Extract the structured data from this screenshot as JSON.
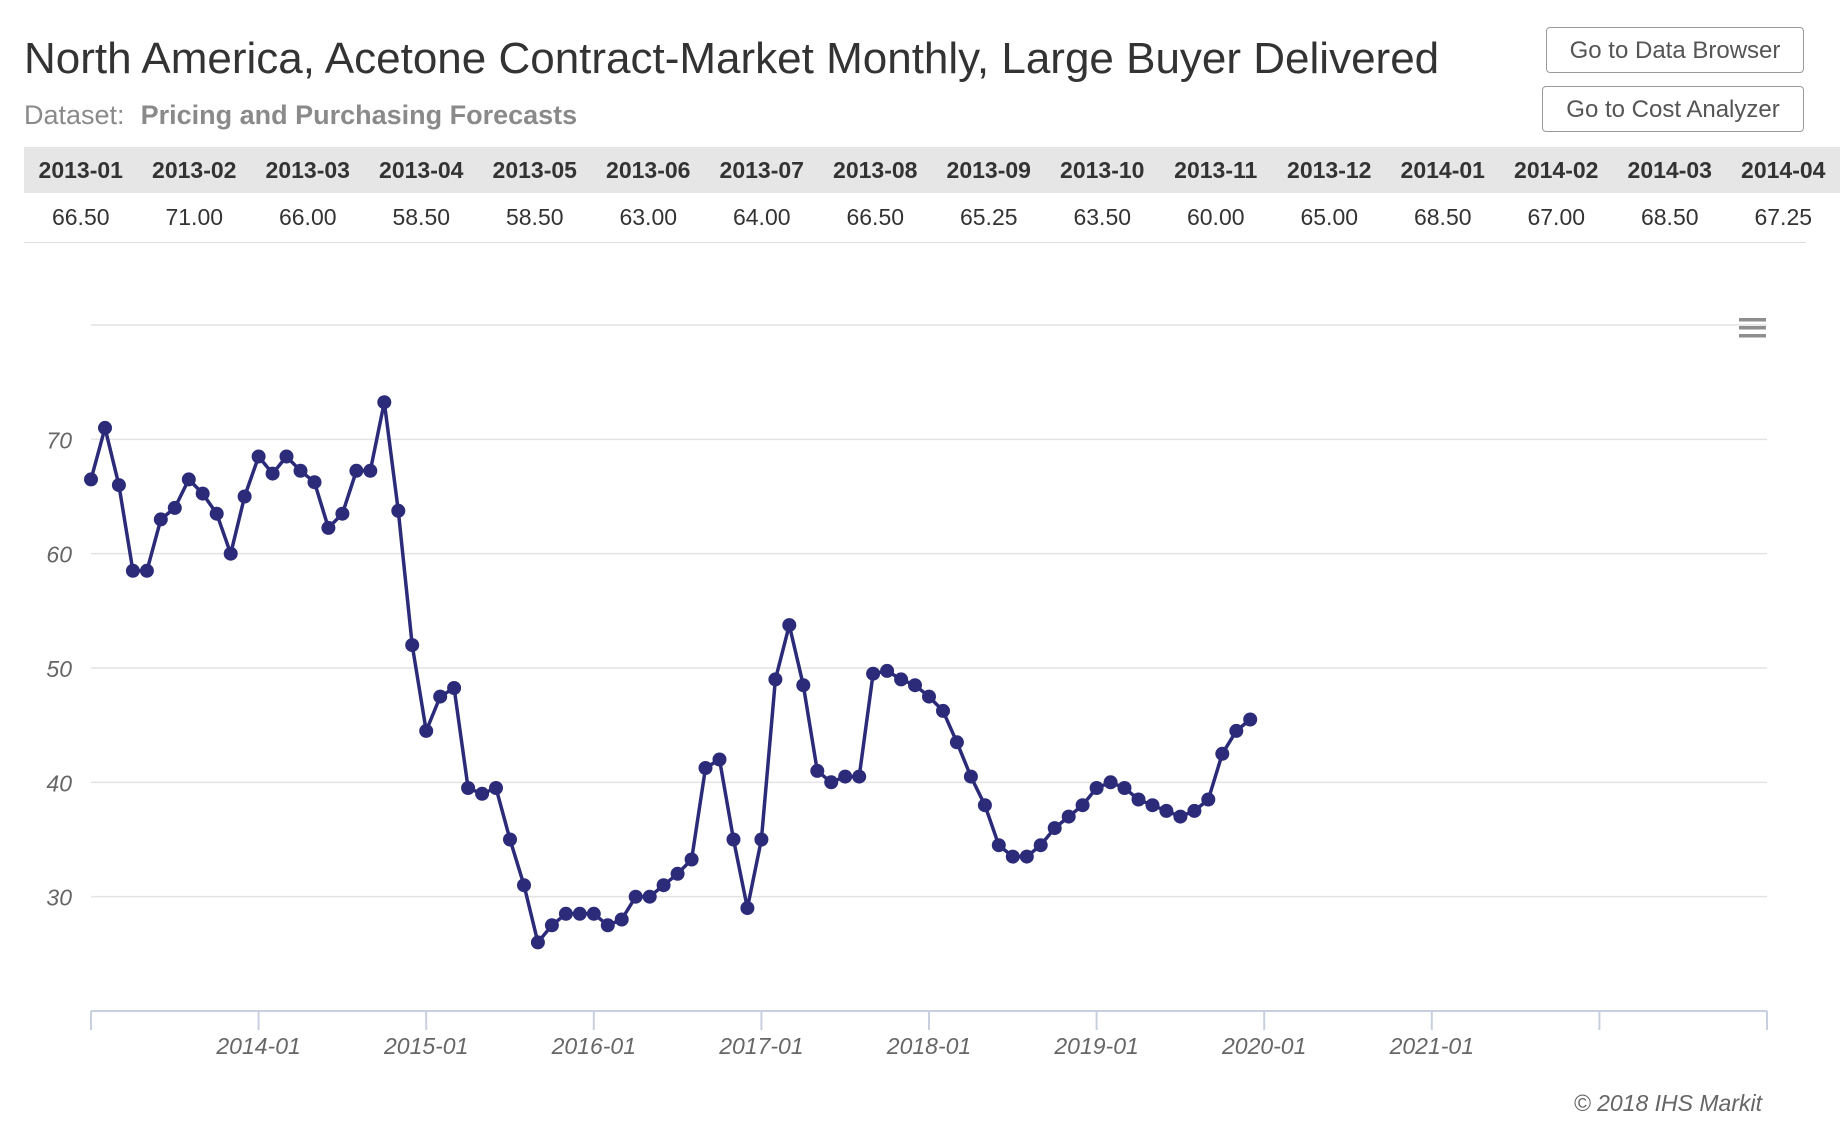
{
  "header": {
    "title": "North America, Acetone Contract-Market Monthly, Large Buyer Delivered",
    "dataset_label": "Dataset:",
    "dataset_name": "Pricing and Purchasing Forecasts"
  },
  "buttons": {
    "data_browser": "Go to Data Browser",
    "cost_analyzer": "Go to Cost Analyzer"
  },
  "table": {
    "headers": [
      "2013-01",
      "2013-02",
      "2013-03",
      "2013-04",
      "2013-05",
      "2013-06",
      "2013-07",
      "2013-08",
      "2013-09",
      "2013-10",
      "2013-11",
      "2013-12",
      "2014-01",
      "2014-02",
      "2014-03",
      "2014-04"
    ],
    "values": [
      "66.50",
      "71.00",
      "66.00",
      "58.50",
      "58.50",
      "63.00",
      "64.00",
      "66.50",
      "65.25",
      "63.50",
      "60.00",
      "65.00",
      "68.50",
      "67.00",
      "68.50",
      "67.25"
    ]
  },
  "footer": {
    "copyright": "© 2018 IHS Markit"
  },
  "colors": {
    "series": "#2b2b7a",
    "grid": "#e3e3e3",
    "axis": "#c8d0e0"
  },
  "icons": {
    "menu": "menu-icon"
  },
  "chart_data": {
    "type": "line",
    "title": "",
    "xlabel": "",
    "ylabel": "",
    "x_start": "2013-01",
    "x_ticks": [
      "2014-01",
      "2015-01",
      "2016-01",
      "2017-01",
      "2018-01",
      "2019-01",
      "2020-01",
      "2021-01"
    ],
    "xlim": [
      "2013-01",
      "2022-12"
    ],
    "y_ticks": [
      30,
      40,
      50,
      60,
      70
    ],
    "ylim": [
      20,
      80
    ],
    "grid": true,
    "legend": "none",
    "series": [
      {
        "values": [
          66.5,
          71.0,
          66.0,
          58.5,
          58.5,
          63.0,
          64.0,
          66.5,
          65.25,
          63.5,
          60.0,
          65.0,
          68.5,
          67.0,
          68.5,
          67.25,
          66.25,
          62.25,
          63.5,
          67.25,
          67.25,
          73.25,
          63.75,
          52.0,
          44.5,
          47.5,
          48.25,
          39.5,
          39.0,
          39.5,
          35.0,
          31.0,
          26.0,
          27.5,
          28.5,
          28.5,
          28.5,
          27.5,
          28.0,
          30.0,
          30.0,
          31.0,
          32.0,
          33.25,
          41.25,
          42.0,
          35.0,
          29.0,
          35.0,
          49.0,
          53.75,
          48.5,
          41.0,
          40.0,
          40.5,
          40.5,
          49.5,
          49.75,
          49.0,
          48.5,
          47.5,
          46.25,
          43.5,
          40.5,
          38.0,
          34.5,
          33.5,
          33.5,
          34.5,
          36.0,
          37.0,
          38.0,
          39.5,
          40.0,
          39.5,
          38.5,
          38.0,
          37.5,
          37.0,
          37.5,
          38.5,
          42.5,
          44.5,
          45.5
        ]
      }
    ]
  }
}
